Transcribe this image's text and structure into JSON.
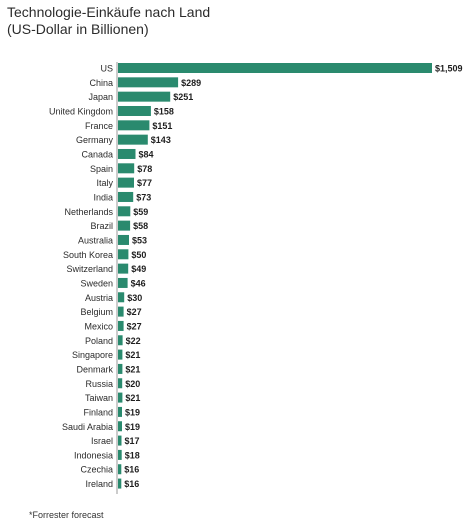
{
  "chart_data": {
    "type": "bar",
    "orientation": "horizontal",
    "title": "Technologie-Einkäufe nach Land",
    "subtitle": "(US-Dollar in Billionen)",
    "categories": [
      "US",
      "China",
      "Japan",
      "United Kingdom",
      "France",
      "Germany",
      "Canada",
      "Spain",
      "Italy",
      "India",
      "Netherlands",
      "Brazil",
      "Australia",
      "South Korea",
      "Switzerland",
      "Sweden",
      "Austria",
      "Belgium",
      "Mexico",
      "Poland",
      "Singapore",
      "Denmark",
      "Russia",
      "Taiwan",
      "Finland",
      "Saudi Arabia",
      "Israel",
      "Indonesia",
      "Czechia",
      "Ireland"
    ],
    "values": [
      1509,
      289,
      251,
      158,
      151,
      143,
      84,
      78,
      77,
      73,
      59,
      58,
      53,
      50,
      49,
      46,
      30,
      27,
      27,
      22,
      21,
      21,
      20,
      21,
      19,
      19,
      17,
      18,
      16,
      16
    ],
    "value_labels": [
      "$1,509",
      "$289",
      "$251",
      "$158",
      "$151",
      "$143",
      "$84",
      "$78",
      "$77",
      "$73",
      "$59",
      "$58",
      "$53",
      "$50",
      "$49",
      "$46",
      "$30",
      "$27",
      "$27",
      "$22",
      "$21",
      "$21",
      "$20",
      "$21",
      "$19",
      "$19",
      "$17",
      "$18",
      "$16",
      "$16"
    ],
    "bar_color": "#2a8a6e",
    "grid": false,
    "legend": "none",
    "footnote": "*Forrester forecast"
  }
}
